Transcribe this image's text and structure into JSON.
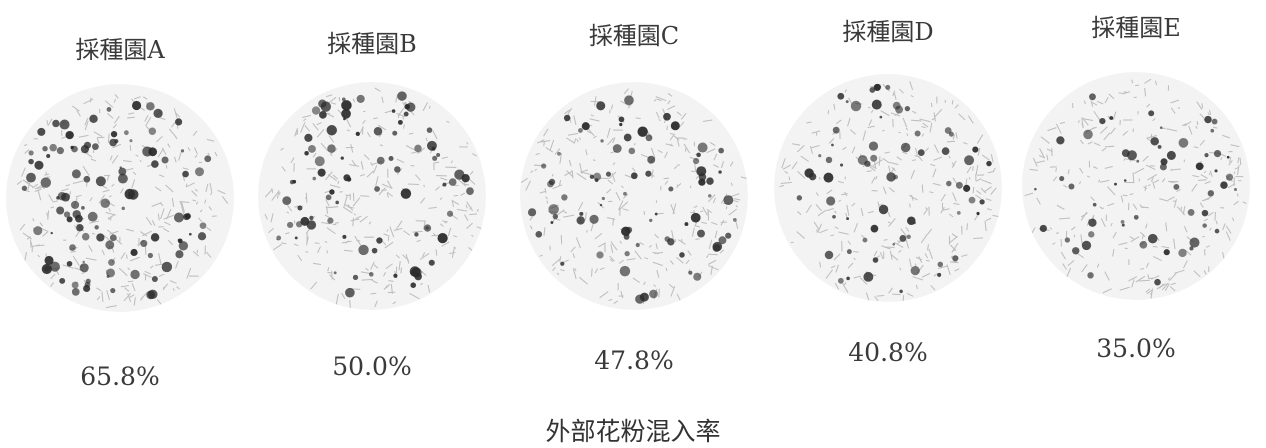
{
  "orchards": [
    {
      "name": "採種園A",
      "rate": "65.8%",
      "fraction": 0.658
    },
    {
      "name": "採種園B",
      "rate": "50.0%",
      "fraction": 0.5
    },
    {
      "name": "採種園C",
      "rate": "47.8%",
      "fraction": 0.478
    },
    {
      "name": "採種園D",
      "rate": "40.8%",
      "fraction": 0.408
    },
    {
      "name": "採種園E",
      "rate": "35.0%",
      "fraction": 0.35
    }
  ],
  "caption": "外部花粉混入率",
  "colors": {
    "disc_fill": "#f3f3f3",
    "texture": "#bdbdbd",
    "patch": "#2b2b2b"
  }
}
